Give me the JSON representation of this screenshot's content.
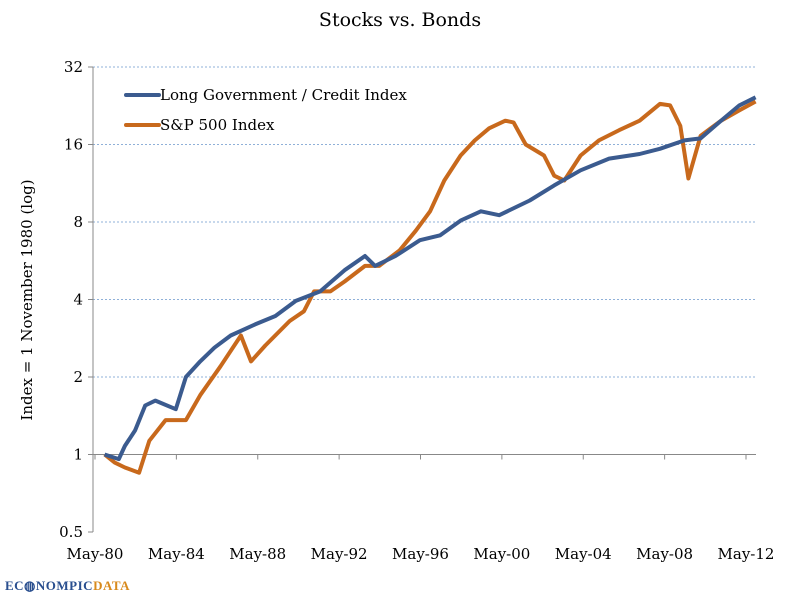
{
  "chart_data": {
    "type": "line",
    "title": "Stocks vs. Bonds",
    "xlabel": "",
    "ylabel": "Index = 1 November 1980 (log)",
    "yscale": "log2",
    "ylim": [
      0.5,
      32
    ],
    "yticks": [
      0.5,
      1,
      2,
      4,
      8,
      16,
      32
    ],
    "ytick_labels": [
      "0.5",
      "1",
      "2",
      "4",
      "8",
      "16",
      "32"
    ],
    "xlim": [
      1980.33,
      2012.33
    ],
    "xticks": [
      1980.33,
      1984.33,
      1988.33,
      1992.33,
      1996.33,
      2000.33,
      2004.33,
      2008.33,
      2012.33
    ],
    "xtick_labels": [
      "May-80",
      "May-84",
      "May-88",
      "May-92",
      "May-96",
      "May-00",
      "May-04",
      "May-08",
      "May-12"
    ],
    "grid": "horizontal dashed",
    "legend_position": "top-left",
    "series": [
      {
        "name": "Long Government / Credit Index",
        "color": "#3b5b8f",
        "x": [
          1980.8,
          1981.5,
          1981.8,
          1982.3,
          1982.8,
          1983.3,
          1984.3,
          1984.8,
          1985.5,
          1986.2,
          1987.0,
          1988.2,
          1989.2,
          1990.2,
          1991.4,
          1992.6,
          1993.6,
          1994.1,
          1995.1,
          1996.3,
          1997.3,
          1998.3,
          1999.3,
          2000.2,
          2001.7,
          2002.9,
          2004.2,
          2005.6,
          2007.1,
          2008.1,
          2009.3,
          2010.1,
          2011.1,
          2012.0,
          2012.8
        ],
        "y": [
          1.0,
          0.96,
          1.08,
          1.24,
          1.55,
          1.62,
          1.5,
          2.0,
          2.3,
          2.6,
          2.9,
          3.2,
          3.45,
          3.95,
          4.3,
          5.2,
          5.9,
          5.4,
          5.9,
          6.8,
          7.1,
          8.1,
          8.8,
          8.5,
          9.7,
          11.1,
          12.7,
          14.1,
          14.7,
          15.4,
          16.6,
          16.9,
          19.8,
          22.7,
          24.4
        ]
      },
      {
        "name": "S&P 500 Index",
        "color": "#c8691c",
        "x": [
          1980.8,
          1981.3,
          1981.8,
          1982.5,
          1983.0,
          1983.8,
          1984.8,
          1985.5,
          1986.5,
          1987.5,
          1988.0,
          1988.7,
          1989.9,
          1990.6,
          1991.1,
          1991.9,
          1992.6,
          1993.6,
          1994.3,
          1995.3,
          1996.1,
          1996.8,
          1997.5,
          1998.3,
          1999.0,
          1999.7,
          2000.5,
          2000.9,
          2001.5,
          2002.4,
          2002.9,
          2003.4,
          2004.2,
          2005.1,
          2006.1,
          2007.1,
          2008.1,
          2008.6,
          2009.1,
          2009.5,
          2010.1,
          2011.1,
          2012.0,
          2012.8
        ],
        "y": [
          1.0,
          0.93,
          0.89,
          0.85,
          1.13,
          1.36,
          1.36,
          1.7,
          2.2,
          2.9,
          2.3,
          2.65,
          3.3,
          3.6,
          4.3,
          4.3,
          4.7,
          5.4,
          5.4,
          6.2,
          7.4,
          8.8,
          11.6,
          14.5,
          16.6,
          18.5,
          19.8,
          19.5,
          16,
          14.5,
          12.1,
          11.6,
          14.5,
          16.6,
          18.2,
          19.8,
          23,
          22.7,
          18.9,
          11.8,
          17.3,
          19.8,
          21.7,
          23.5
        ]
      }
    ]
  },
  "logo": {
    "part1": "ECONOMIC",
    "part1_display": "EC",
    "part1b": "NOMPIC",
    "part2": "DATA"
  }
}
